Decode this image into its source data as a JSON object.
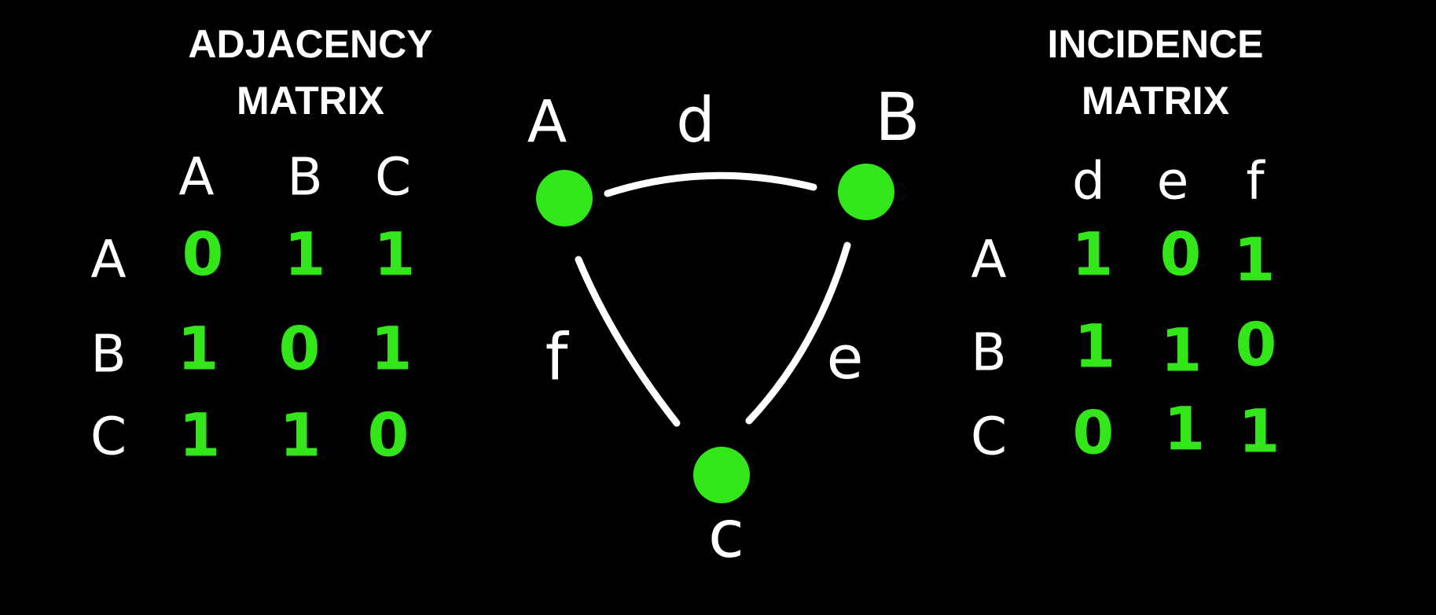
{
  "colors": {
    "background": "#000000",
    "text": "#ffffff",
    "node": "#33e61a",
    "matrix_value": "#33e61a",
    "edge": "#ffffff"
  },
  "adjacency": {
    "title_line1": "ADJACENCY",
    "title_line2": "MATRIX",
    "col_headers": [
      "A",
      "B",
      "C"
    ],
    "row_headers": [
      "A",
      "B",
      "C"
    ],
    "values": [
      [
        "0",
        "1",
        "1"
      ],
      [
        "1",
        "0",
        "1"
      ],
      [
        "1",
        "1",
        "0"
      ]
    ]
  },
  "incidence": {
    "title_line1": "INCIDENCE",
    "title_line2": "MATRIX",
    "col_headers": [
      "d",
      "e",
      "f"
    ],
    "row_headers": [
      "A",
      "B",
      "C"
    ],
    "values": [
      [
        "1",
        "0",
        "1"
      ],
      [
        "1",
        "1",
        "0"
      ],
      [
        "0",
        "1",
        "1"
      ]
    ]
  },
  "graph": {
    "nodes": [
      {
        "id": "A",
        "label": "A"
      },
      {
        "id": "B",
        "label": "B"
      },
      {
        "id": "C",
        "label": "c"
      }
    ],
    "edges": [
      {
        "label": "d",
        "from": "A",
        "to": "B"
      },
      {
        "label": "e",
        "from": "B",
        "to": "C"
      },
      {
        "label": "f",
        "from": "A",
        "to": "C"
      }
    ]
  }
}
